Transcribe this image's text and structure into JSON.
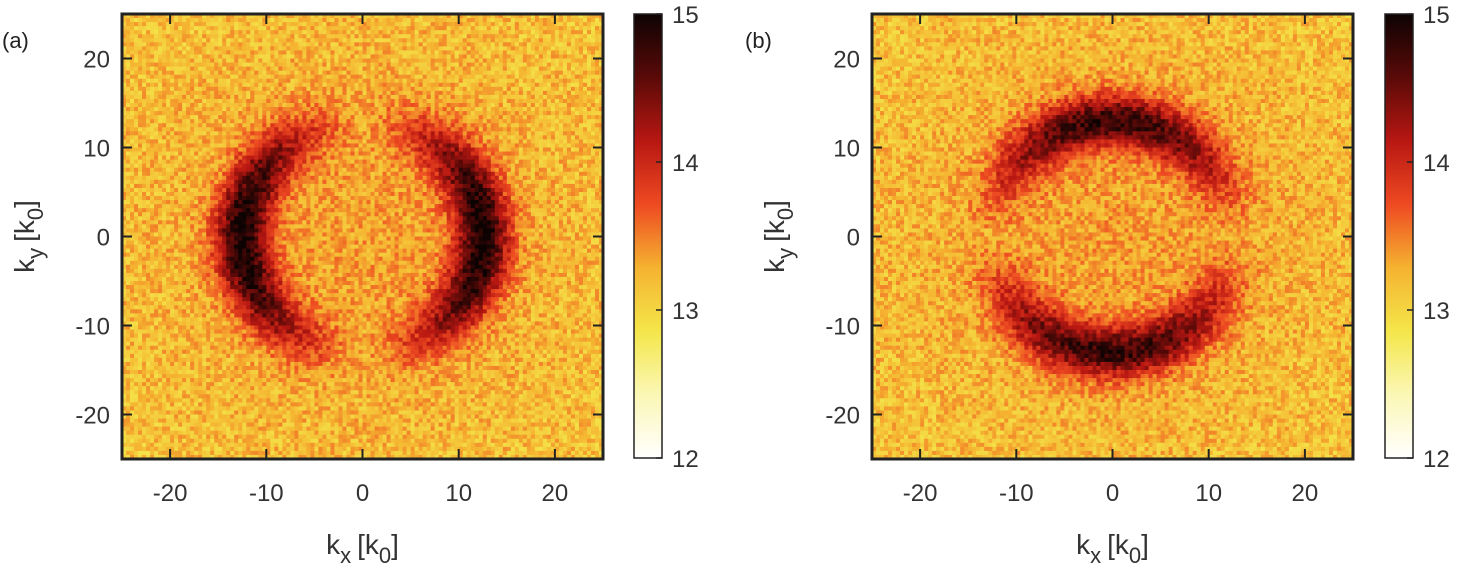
{
  "chart_data": [
    {
      "type": "heatmap",
      "panel_label": "(a)",
      "xlabel_main": "k",
      "xlabel_sub": "x",
      "xlabel_unit": "[k",
      "xlabel_unit_sub": "0",
      "xlabel_close": "]",
      "ylabel_main": "k",
      "ylabel_sub": "y",
      "ylabel_unit": "[k",
      "ylabel_unit_sub": "0",
      "ylabel_close": "]",
      "xlim": [
        -25,
        25
      ],
      "ylim": [
        -25,
        25
      ],
      "xticks": [
        -20,
        -10,
        0,
        10,
        20
      ],
      "yticks": [
        -20,
        -10,
        0,
        10,
        20
      ],
      "xtick_labels": [
        "-20",
        "-10",
        "0",
        "10",
        "20"
      ],
      "ytick_labels": [
        "-20",
        "-10",
        "0",
        "10",
        "20"
      ],
      "colorbar": {
        "range": [
          12,
          15
        ],
        "ticks": [
          12,
          13,
          14,
          15
        ],
        "tick_labels": [
          "12",
          "13",
          "14",
          "15"
        ]
      },
      "pattern": {
        "shape": "two crescent arcs left and right",
        "arc_centers": [
          [
            -12,
            0
          ],
          [
            12,
            0
          ]
        ],
        "arc_radius_x": 11,
        "arc_radius_y": 13,
        "peak_value": 14.8,
        "background_value": 13.1
      }
    },
    {
      "type": "heatmap",
      "panel_label": "(b)",
      "xlabel_main": "k",
      "xlabel_sub": "x",
      "xlabel_unit": "[k",
      "xlabel_unit_sub": "0",
      "xlabel_close": "]",
      "ylabel_main": "k",
      "ylabel_sub": "y",
      "ylabel_unit": "[k",
      "ylabel_unit_sub": "0",
      "ylabel_close": "]",
      "xlim": [
        -25,
        25
      ],
      "ylim": [
        -25,
        25
      ],
      "xticks": [
        -20,
        -10,
        0,
        10,
        20
      ],
      "yticks": [
        -20,
        -10,
        0,
        10,
        20
      ],
      "xtick_labels": [
        "-20",
        "-10",
        "0",
        "10",
        "20"
      ],
      "ytick_labels": [
        "-20",
        "-10",
        "0",
        "10",
        "20"
      ],
      "colorbar": {
        "range": [
          12,
          15
        ],
        "ticks": [
          12,
          13,
          14,
          15
        ],
        "tick_labels": [
          "12",
          "13",
          "14",
          "15"
        ]
      },
      "pattern": {
        "shape": "two crescent arcs top and bottom",
        "arc_centers": [
          [
            0,
            12
          ],
          [
            0,
            -12
          ]
        ],
        "arc_radius_x": 15,
        "arc_radius_y": 8,
        "peak_value": 14.6,
        "background_value": 13.1
      }
    }
  ],
  "colormap": [
    "#ffffff",
    "#fbf7b5",
    "#f4e64a",
    "#f5b230",
    "#ee4a22",
    "#b81712",
    "#5a0a08",
    "#0d0303"
  ]
}
